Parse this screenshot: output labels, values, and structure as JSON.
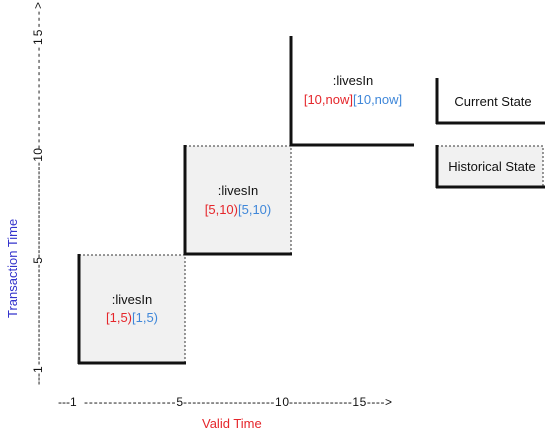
{
  "colors": {
    "valid_interval": "#e5262b",
    "transaction_interval": "#3f87d9",
    "axis_title": "#3333cc",
    "valid_axis_title": "#e5262b",
    "historical_fill": "#f1f1f1"
  },
  "axes": {
    "x_title": "Valid Time",
    "y_title": "Transaction Time",
    "x_ruler": {
      "seg1": "---1 ",
      "label1": "-------------------5",
      "label2": "--------------------10",
      "label3": "--------------15---->"
    },
    "y_ruler": {
      "seg_bottom": "---1",
      "seg_5": "----------------------5",
      "seg_10": "----------------------10",
      "seg_15": "-----------------15--->"
    }
  },
  "boxes": [
    {
      "title": ":livesIn",
      "valid": "[1,5)",
      "transaction": "[1,5)"
    },
    {
      "title": ":livesIn",
      "valid": "[5,10)",
      "transaction": "[5,10)"
    },
    {
      "title": ":livesIn",
      "valid": "[10,now]",
      "transaction": "[10,now]"
    }
  ],
  "legend": {
    "current": "Current State",
    "historical": "Historical State"
  }
}
